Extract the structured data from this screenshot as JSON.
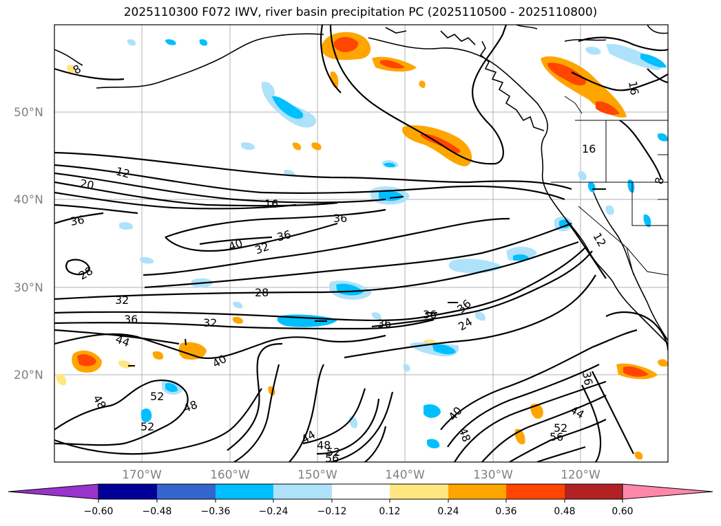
{
  "title": "2025110300 F072 IWV, river basin precipitation PC (2025110500 - 2025110800)",
  "lat_labels": [
    "50°N",
    "40°N",
    "30°N",
    "20°N"
  ],
  "lon_labels": [
    "170°W",
    "160°W",
    "150°W",
    "140°W",
    "130°W",
    "120°W"
  ],
  "colorbar": {
    "tick_labels": [
      "−0.60",
      "−0.48",
      "−0.36",
      "−0.24",
      "−0.12",
      "0.12",
      "0.24",
      "0.36",
      "0.48",
      "0.60"
    ],
    "colors": [
      "#9933cc",
      "#000099",
      "#3366cc",
      "#00bfff",
      "#aee2fa",
      "#ffffff",
      "#ffe680",
      "#ffa500",
      "#ff4500",
      "#b22222",
      "#ff88aa"
    ]
  },
  "contour_labels": [
    "12",
    "20",
    "16",
    "36",
    "36",
    "40",
    "32",
    "36",
    "28",
    "28",
    "32",
    "36",
    "32",
    "36",
    "36",
    "24",
    "36",
    "44",
    "40",
    "52",
    "48",
    "48",
    "52",
    "44",
    "48",
    "52",
    "56",
    "40",
    "48",
    "36",
    "44",
    "52",
    "56",
    "16",
    "16",
    "8",
    "12",
    "8"
  ]
}
